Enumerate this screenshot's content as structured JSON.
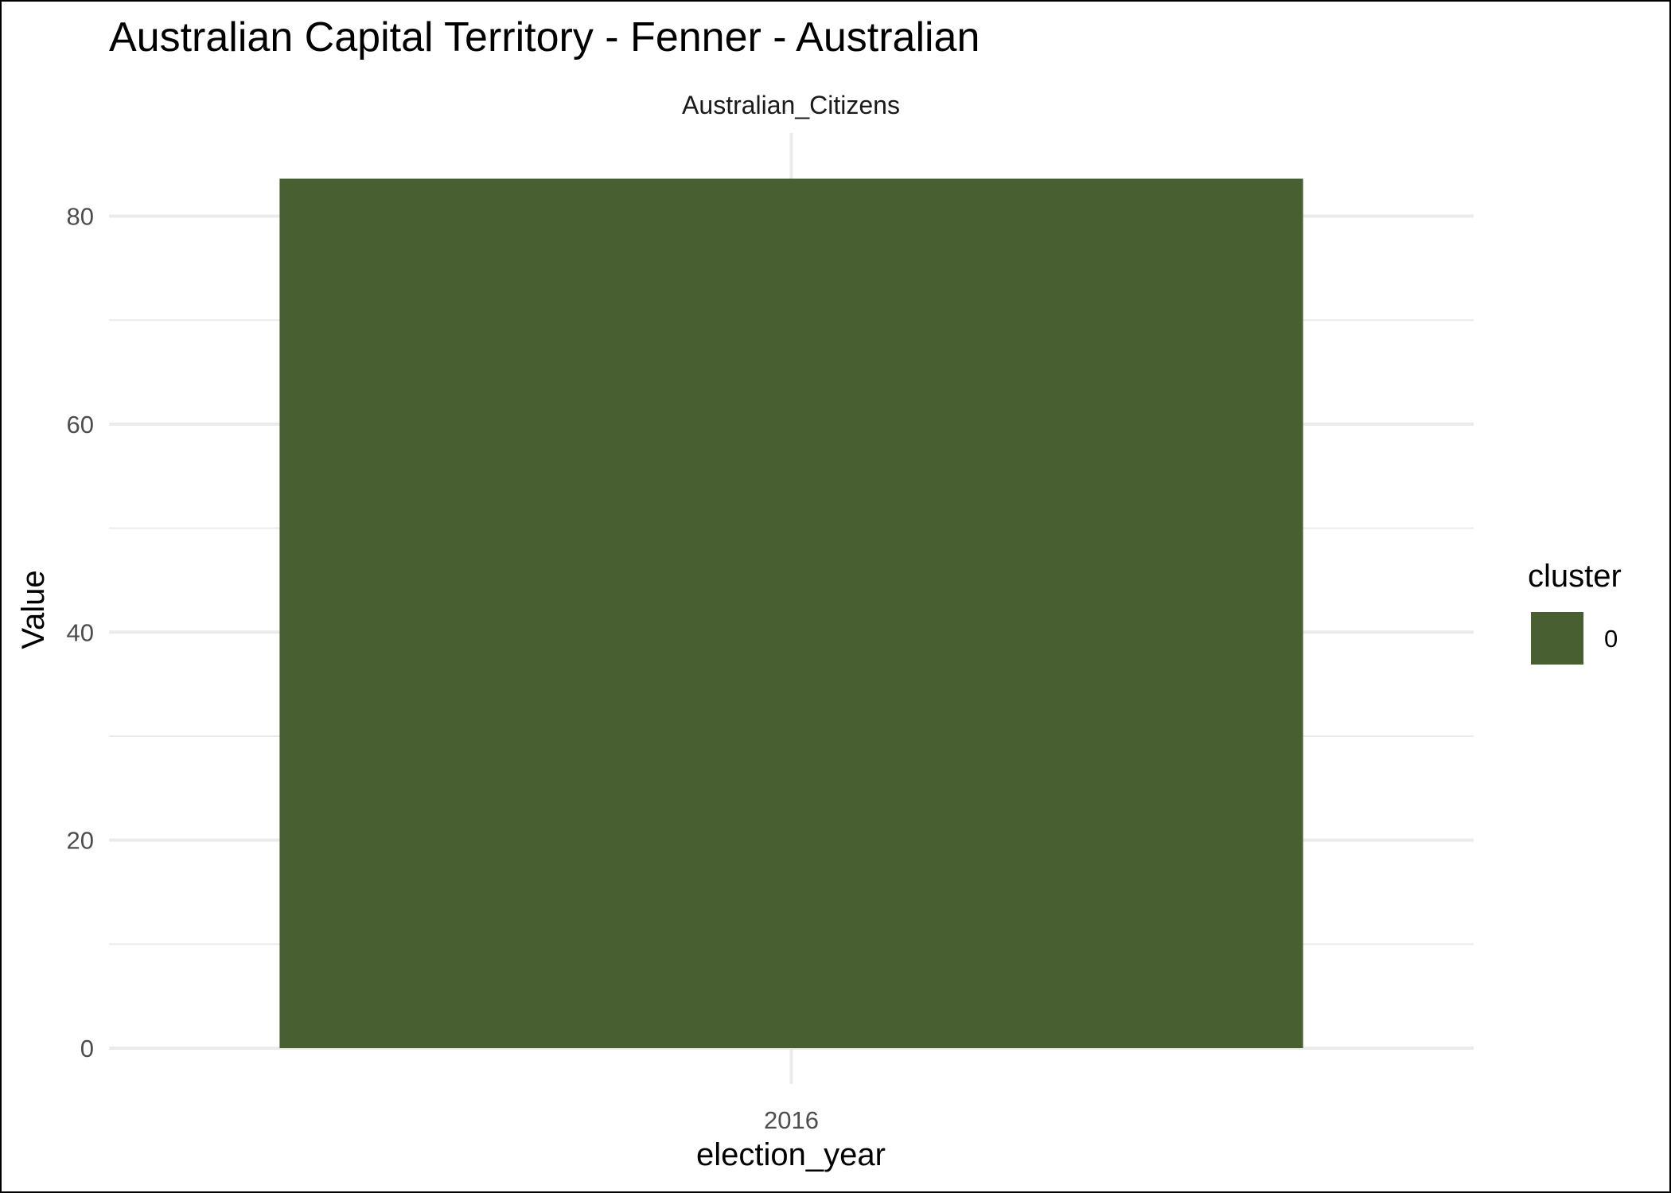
{
  "chart_data": {
    "type": "bar",
    "title": "Australian Capital Territory - Fenner - Australian",
    "facet": "Australian_Citizens",
    "xlabel": "election_year",
    "ylabel": "Value",
    "categories": [
      "2016"
    ],
    "series": [
      {
        "name": "0",
        "values": [
          83.6
        ]
      }
    ],
    "ylim": [
      0,
      88
    ],
    "y_ticks": [
      0,
      20,
      40,
      60,
      80
    ],
    "y_minor_ticks": [
      10,
      30,
      50,
      70
    ],
    "grid": true,
    "legend": {
      "title": "cluster",
      "position": "right",
      "entries": [
        "0"
      ]
    },
    "colors": {
      "bar": "#486031",
      "grid": "#ebebeb"
    }
  }
}
